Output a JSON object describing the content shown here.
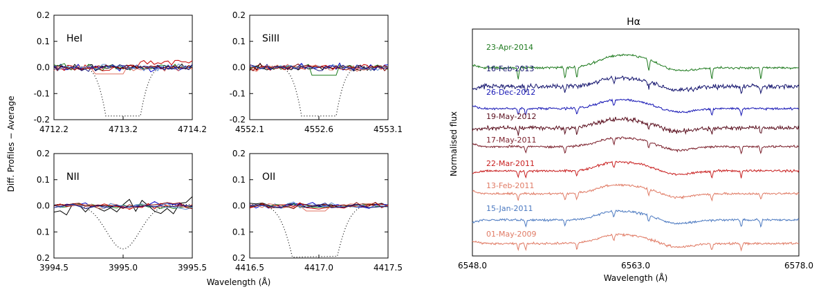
{
  "panels": [
    {
      "label": "HeI",
      "xticks": [
        "4712.2",
        "4713.2",
        "4714.2"
      ],
      "xrange": [
        4712.2,
        4714.2
      ],
      "lineCenter": 4713.2,
      "lineWidth": 0.18,
      "redBump": true
    },
    {
      "label": "SiIII",
      "xticks": [
        "4552.1",
        "4552.6",
        "4553.1"
      ],
      "xrange": [
        4552.1,
        4553.1
      ],
      "lineCenter": 4552.6,
      "lineWidth": 0.09,
      "redBump": false
    },
    {
      "label": "NII",
      "xticks": [
        "3994.5",
        "3995.0",
        "3995.5"
      ],
      "xrange": [
        3994.5,
        3995.5
      ],
      "lineCenter": 3995.0,
      "lineWidth": 0.09,
      "redBump": false
    },
    {
      "label": "OII",
      "xticks": [
        "4416.5",
        "4417.0",
        "4417.5"
      ],
      "xrange": [
        4416.5,
        4417.5
      ],
      "lineCenter": 4416.97,
      "lineWidth": 0.12,
      "redBump": false
    }
  ],
  "yticks": [
    "0.2",
    "0.1",
    "0.0",
    "0.1",
    "0.2"
  ],
  "left_ylabel": "Diff. Profiles − Average",
  "left_xlabel": "Wavelength (Å)",
  "right_title": "Hα",
  "right_ylabel": "Normalised flux",
  "right_xlabel": "Wavelength (Å)",
  "right_xticks": [
    "6548.0",
    "6563.0",
    "6578.0"
  ],
  "chart_data": [
    {
      "type": "line",
      "title": "",
      "panels": [
        "HeI",
        "SiIII",
        "NII",
        "OII"
      ],
      "xlabel": "Wavelength (Å)",
      "ylabel": "Diff. Profiles − Average",
      "ylim": [
        -0.2,
        0.2
      ],
      "series_colors": [
        "#000000",
        "#0000c8",
        "#1a7a1a",
        "#c80000",
        "#e07060",
        "#6090d0",
        "#800000",
        "#1a1a80"
      ],
      "note_series": "difference profiles around 0.0, dotted line = average profile"
    },
    {
      "type": "line",
      "title": "Hα",
      "xlabel": "Wavelength (Å)",
      "ylabel": "Normalised flux",
      "xlim": [
        6548.0,
        6578.0
      ],
      "series": [
        {
          "name": "23-Apr-2014",
          "color": "#1e7a1e"
        },
        {
          "name": "16-Feb-2013",
          "color": "#14146e"
        },
        {
          "name": "26-Dec-2012",
          "color": "#1414b4"
        },
        {
          "name": "19-May-2012",
          "color": "#5a0f1e"
        },
        {
          "name": "17-May-2011",
          "color": "#7a1e2a"
        },
        {
          "name": "22-Mar-2011",
          "color": "#c81e1e"
        },
        {
          "name": "13-Feb-2011",
          "color": "#e07a64"
        },
        {
          "name": "15-Jan-2011",
          "color": "#4a78c0"
        },
        {
          "name": "01-May-2009",
          "color": "#e07a64"
        }
      ]
    }
  ]
}
